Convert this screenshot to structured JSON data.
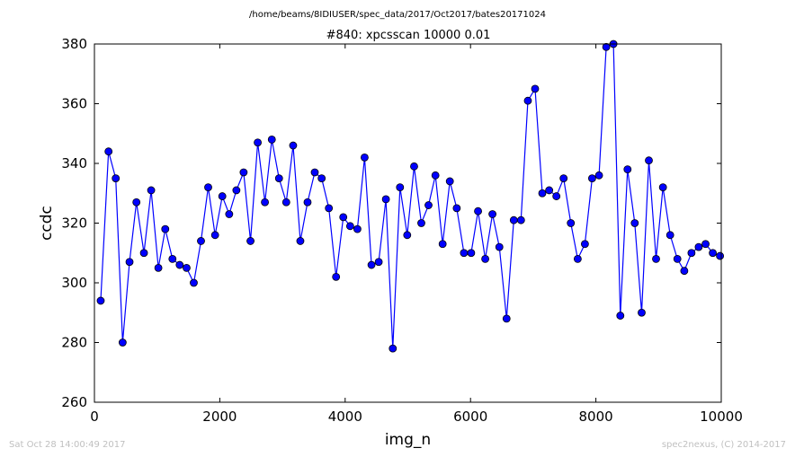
{
  "figure": {
    "suptitle": "/home/beams/8IDIUSER/spec_data/2017/Oct2017/bates20171024",
    "footer_left": "Sat Oct 28 14:00:49 2017",
    "footer_right": "spec2nexus, (C) 2014-2017"
  },
  "chart_data": {
    "type": "line",
    "title": "#840: xpcsscan 10000 0.01",
    "xlabel": "img_n",
    "ylabel": "ccdc",
    "xlim": [
      0,
      10000
    ],
    "ylim": [
      260,
      380
    ],
    "xticks": [
      0,
      2000,
      4000,
      6000,
      8000,
      10000
    ],
    "yticks": [
      260,
      280,
      300,
      320,
      340,
      360,
      380
    ],
    "grid": false,
    "legend": "none",
    "series": [
      {
        "color": "#0000ff",
        "marker": "circle",
        "x": [
          100,
          225,
          340,
          450,
          560,
          670,
          790,
          905,
          1020,
          1130,
          1245,
          1360,
          1470,
          1585,
          1700,
          1815,
          1925,
          2040,
          2150,
          2265,
          2380,
          2490,
          2605,
          2720,
          2830,
          2945,
          3060,
          3170,
          3285,
          3400,
          3515,
          3625,
          3740,
          3855,
          3970,
          4080,
          4195,
          4310,
          4420,
          4535,
          4650,
          4760,
          4875,
          4990,
          5100,
          5215,
          5330,
          5440,
          5555,
          5670,
          5780,
          5895,
          6010,
          6120,
          6235,
          6350,
          6460,
          6575,
          6690,
          6805,
          6915,
          7030,
          7145,
          7255,
          7370,
          7485,
          7600,
          7710,
          7825,
          7940,
          8050,
          8165,
          8280,
          8390,
          8505,
          8620,
          8730,
          8845,
          8960,
          9070,
          9185,
          9300,
          9410,
          9525,
          9640,
          9750,
          9865,
          9980
        ],
        "y": [
          294,
          344,
          335,
          280,
          307,
          327,
          310,
          331,
          305,
          318,
          308,
          306,
          305,
          300,
          314,
          332,
          316,
          329,
          323,
          331,
          337,
          314,
          347,
          327,
          348,
          335,
          327,
          346,
          314,
          327,
          337,
          335,
          325,
          302,
          322,
          319,
          318,
          342,
          306,
          307,
          328,
          278,
          332,
          316,
          339,
          320,
          326,
          336,
          313,
          334,
          325,
          310,
          310,
          324,
          308,
          323,
          312,
          288,
          321,
          321,
          361,
          365,
          330,
          331,
          329,
          335,
          320,
          308,
          313,
          335,
          336,
          379,
          380,
          289,
          338,
          320,
          290,
          341,
          308,
          332,
          316,
          308,
          304,
          310,
          312,
          313,
          310,
          309
        ]
      }
    ]
  }
}
